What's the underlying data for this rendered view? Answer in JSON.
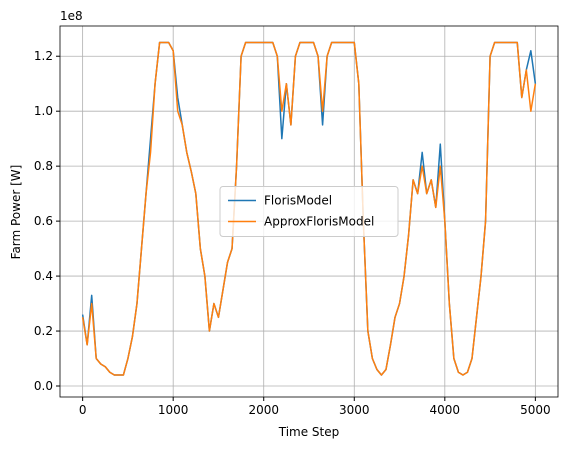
{
  "chart_data": {
    "type": "line",
    "xlabel": "Time Step",
    "ylabel": "Farm Power [W]",
    "y_offset_label": "1e8",
    "x": [
      0,
      50,
      100,
      150,
      200,
      250,
      300,
      350,
      400,
      450,
      500,
      550,
      600,
      650,
      700,
      750,
      800,
      850,
      900,
      950,
      1000,
      1050,
      1100,
      1150,
      1200,
      1250,
      1300,
      1350,
      1400,
      1450,
      1500,
      1550,
      1600,
      1650,
      1700,
      1750,
      1800,
      1850,
      1900,
      1950,
      2000,
      2050,
      2100,
      2150,
      2200,
      2250,
      2300,
      2350,
      2400,
      2450,
      2500,
      2550,
      2600,
      2650,
      2700,
      2750,
      2800,
      2850,
      2900,
      2950,
      3000,
      3050,
      3100,
      3150,
      3200,
      3250,
      3300,
      3350,
      3400,
      3450,
      3500,
      3550,
      3600,
      3650,
      3700,
      3750,
      3800,
      3850,
      3900,
      3950,
      4000,
      4050,
      4100,
      4150,
      4200,
      4250,
      4300,
      4350,
      4400,
      4450,
      4500,
      4550,
      4600,
      4650,
      4700,
      4750,
      4800,
      4850,
      4900,
      4950,
      5000
    ],
    "series": [
      {
        "name": "FlorisModel",
        "color": "#1f77b4",
        "values": [
          0.26,
          0.15,
          0.33,
          0.1,
          0.08,
          0.07,
          0.05,
          0.04,
          0.04,
          0.04,
          0.1,
          0.18,
          0.3,
          0.5,
          0.7,
          0.9,
          1.1,
          1.25,
          1.25,
          1.25,
          1.22,
          1.05,
          0.95,
          0.85,
          0.78,
          0.7,
          0.5,
          0.4,
          0.2,
          0.3,
          0.25,
          0.35,
          0.45,
          0.5,
          0.8,
          1.2,
          1.25,
          1.25,
          1.25,
          1.25,
          1.25,
          1.25,
          1.25,
          1.2,
          0.9,
          1.1,
          0.95,
          1.2,
          1.25,
          1.25,
          1.25,
          1.25,
          1.2,
          0.95,
          1.2,
          1.25,
          1.25,
          1.25,
          1.25,
          1.25,
          1.25,
          1.1,
          0.6,
          0.2,
          0.1,
          0.06,
          0.04,
          0.06,
          0.15,
          0.25,
          0.3,
          0.4,
          0.55,
          0.75,
          0.7,
          0.85,
          0.7,
          0.75,
          0.65,
          0.88,
          0.6,
          0.3,
          0.1,
          0.05,
          0.04,
          0.05,
          0.1,
          0.25,
          0.4,
          0.6,
          1.2,
          1.25,
          1.25,
          1.25,
          1.25,
          1.25,
          1.25,
          1.05,
          1.15,
          1.22,
          1.1
        ]
      },
      {
        "name": "ApproxFlorisModel",
        "color": "#ff7f0e",
        "values": [
          0.25,
          0.15,
          0.3,
          0.1,
          0.08,
          0.07,
          0.05,
          0.04,
          0.04,
          0.04,
          0.1,
          0.18,
          0.3,
          0.5,
          0.7,
          0.85,
          1.1,
          1.25,
          1.25,
          1.25,
          1.22,
          1.0,
          0.95,
          0.85,
          0.78,
          0.7,
          0.5,
          0.4,
          0.2,
          0.3,
          0.25,
          0.35,
          0.45,
          0.5,
          0.8,
          1.2,
          1.25,
          1.25,
          1.25,
          1.25,
          1.25,
          1.25,
          1.25,
          1.2,
          1.0,
          1.1,
          0.95,
          1.2,
          1.25,
          1.25,
          1.25,
          1.25,
          1.2,
          1.0,
          1.2,
          1.25,
          1.25,
          1.25,
          1.25,
          1.25,
          1.25,
          1.1,
          0.6,
          0.2,
          0.1,
          0.06,
          0.04,
          0.06,
          0.15,
          0.25,
          0.3,
          0.4,
          0.55,
          0.75,
          0.7,
          0.8,
          0.7,
          0.75,
          0.65,
          0.8,
          0.6,
          0.3,
          0.1,
          0.05,
          0.04,
          0.05,
          0.1,
          0.25,
          0.4,
          0.6,
          1.2,
          1.25,
          1.25,
          1.25,
          1.25,
          1.25,
          1.25,
          1.05,
          1.15,
          1.0,
          1.1
        ]
      }
    ],
    "xlim": [
      -250,
      5250
    ],
    "ylim": [
      -0.04,
      1.31
    ],
    "xticks": [
      0,
      1000,
      2000,
      3000,
      4000,
      5000
    ],
    "yticks": [
      {
        "value": 0,
        "label": "0.0"
      },
      0.2,
      0.4,
      0.6,
      0.8,
      {
        "value": 1,
        "label": "1.0"
      },
      1.2
    ],
    "grid": true,
    "legend": "center"
  }
}
